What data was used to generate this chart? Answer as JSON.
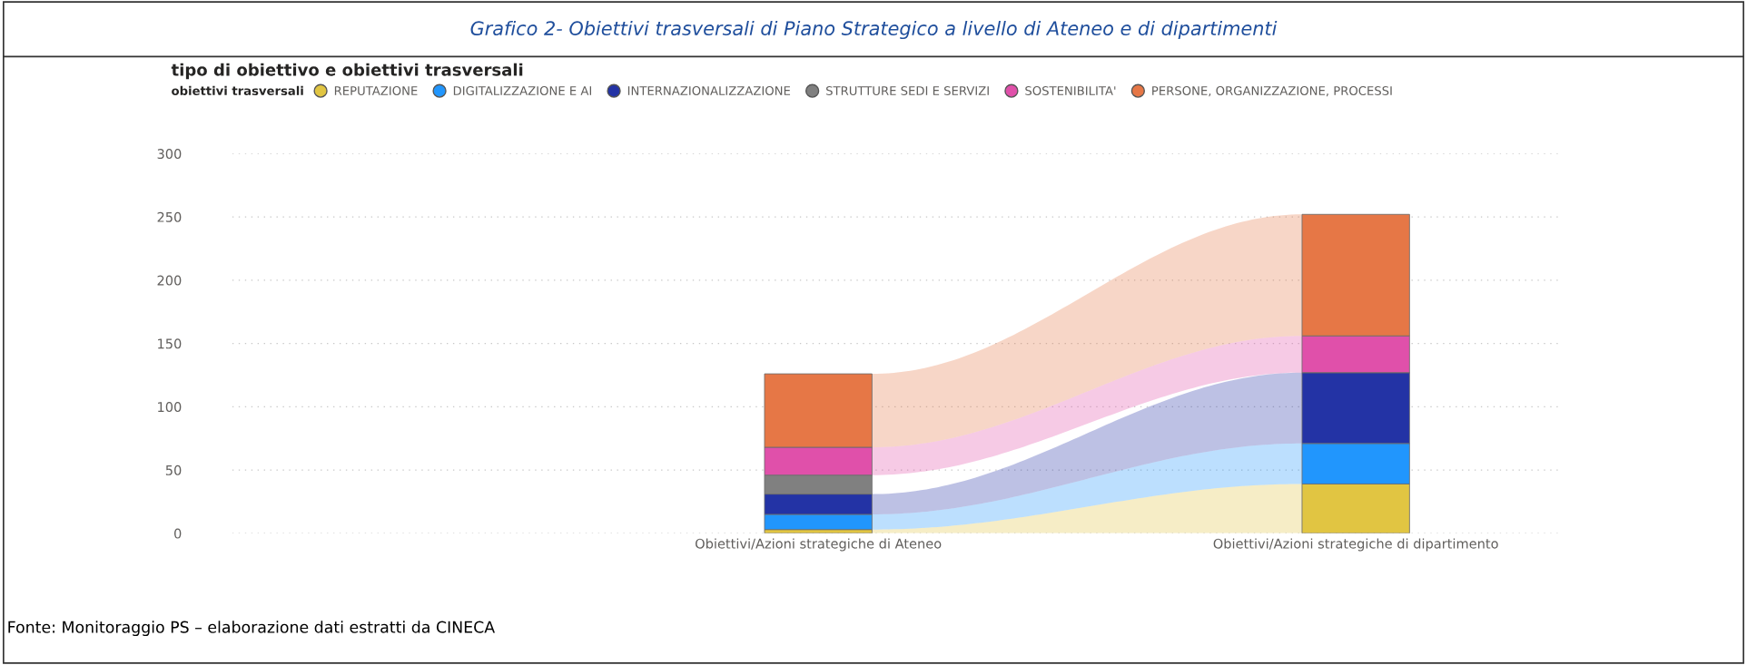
{
  "chart_data": {
    "type": "bar",
    "stacked": true,
    "title": "Grafico 2- Obiettivi trasversali di Piano Strategico a livello di Ateneo e di dipartimenti",
    "subtitle": "tipo di obiettivo e obiettivi trasversali",
    "legend_title": "obiettivi trasversali",
    "categories": [
      "Obiettivi/Azioni strategiche di Ateneo",
      "Obiettivi/Azioni strategiche di dipartimento"
    ],
    "series": [
      {
        "name": "REPUTAZIONE",
        "color": "#e1c542",
        "values": [
          3,
          39
        ]
      },
      {
        "name": "DIGITALIZZAZIONE E AI",
        "color": "#2196fd",
        "values": [
          12,
          32
        ]
      },
      {
        "name": "INTERNAZIONALIZZAZIONE",
        "color": "#2333a5",
        "values": [
          16,
          56
        ]
      },
      {
        "name": "STRUTTURE SEDI E SERVIZI",
        "color": "#808080",
        "values": [
          15,
          0
        ]
      },
      {
        "name": "SOSTENIBILITA'",
        "color": "#e050aa",
        "values": [
          22,
          29
        ]
      },
      {
        "name": "PERSONE, ORGANIZZAZIONE, PROCESSI",
        "color": "#e67746",
        "values": [
          58,
          96
        ]
      }
    ],
    "ylim": [
      0,
      300
    ],
    "yticks": [
      0,
      50,
      100,
      150,
      200,
      250,
      300
    ],
    "grid": "y",
    "legend": "top left",
    "annotations": [
      "Fonte: Monitoraggio PS – elaborazione dati estratti da CINECA"
    ]
  }
}
